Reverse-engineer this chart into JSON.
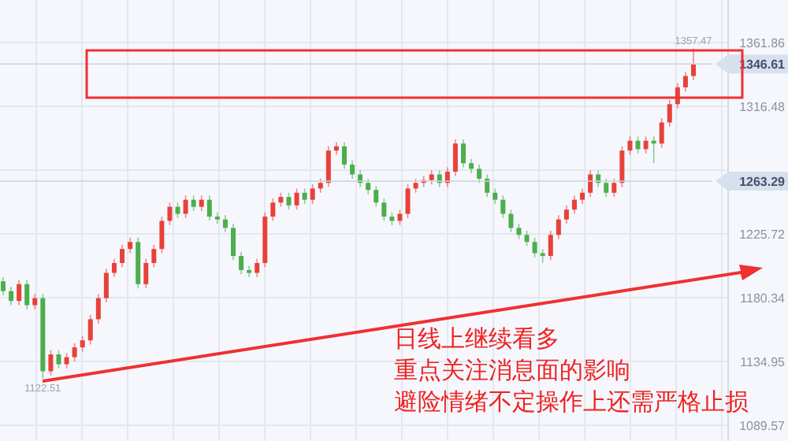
{
  "chart_data": {
    "type": "candlestick",
    "categories": [
      null,
      null,
      null,
      null,
      null,
      null,
      null,
      null,
      null,
      null,
      null,
      null,
      null,
      null,
      null,
      null,
      null,
      null,
      null,
      null,
      null,
      null,
      null,
      null,
      null,
      null,
      null,
      null,
      null,
      null,
      null,
      null,
      null,
      null,
      null,
      null,
      null,
      null,
      null,
      null,
      null,
      null,
      null,
      null,
      null,
      null,
      null,
      null,
      null,
      null,
      null,
      null,
      null,
      null,
      null,
      null,
      null,
      null,
      null,
      null,
      null,
      null,
      null,
      null,
      null,
      null,
      null,
      null,
      null,
      null,
      null,
      null,
      null,
      null,
      null,
      null,
      null,
      null,
      null,
      null,
      null,
      null,
      null,
      null,
      null,
      null,
      null,
      null
    ],
    "ohlc": [
      [
        1192,
        1195,
        1182,
        1185
      ],
      [
        1185,
        1188,
        1175,
        1178
      ],
      [
        1178,
        1193,
        1175,
        1190
      ],
      [
        1190,
        1193,
        1172,
        1175
      ],
      [
        1175,
        1183,
        1172,
        1180
      ],
      [
        1180,
        1183,
        1122.51,
        1128
      ],
      [
        1128,
        1143,
        1125,
        1140
      ],
      [
        1140,
        1143,
        1130,
        1133
      ],
      [
        1133,
        1141,
        1130,
        1138
      ],
      [
        1138,
        1148,
        1135,
        1145
      ],
      [
        1145,
        1153,
        1142,
        1150
      ],
      [
        1150,
        1168,
        1147,
        1165
      ],
      [
        1165,
        1183,
        1162,
        1180
      ],
      [
        1180,
        1201,
        1177,
        1198
      ],
      [
        1198,
        1208,
        1195,
        1205
      ],
      [
        1205,
        1218,
        1202,
        1215
      ],
      [
        1215,
        1223,
        1212,
        1220
      ],
      [
        1220,
        1223,
        1187,
        1190
      ],
      [
        1190,
        1208,
        1187,
        1205
      ],
      [
        1205,
        1218,
        1202,
        1215
      ],
      [
        1215,
        1238,
        1212,
        1235
      ],
      [
        1235,
        1248,
        1232,
        1245
      ],
      [
        1245,
        1248,
        1237,
        1240
      ],
      [
        1240,
        1253,
        1237,
        1250
      ],
      [
        1250,
        1253,
        1242,
        1245
      ],
      [
        1245,
        1253,
        1242,
        1250
      ],
      [
        1250,
        1253,
        1235,
        1238
      ],
      [
        1238,
        1241,
        1233,
        1236
      ],
      [
        1236,
        1239,
        1227,
        1230
      ],
      [
        1230,
        1233,
        1207,
        1210
      ],
      [
        1210,
        1213,
        1197,
        1200
      ],
      [
        1200,
        1203,
        1195,
        1198
      ],
      [
        1198,
        1208,
        1195,
        1205
      ],
      [
        1205,
        1241,
        1202,
        1238
      ],
      [
        1238,
        1251,
        1235,
        1248
      ],
      [
        1248,
        1255,
        1245,
        1252
      ],
      [
        1252,
        1255,
        1243,
        1246
      ],
      [
        1246,
        1258,
        1243,
        1255
      ],
      [
        1255,
        1258,
        1247,
        1250
      ],
      [
        1250,
        1261,
        1247,
        1258
      ],
      [
        1258,
        1265,
        1255,
        1262
      ],
      [
        1262,
        1288,
        1259,
        1285
      ],
      [
        1285,
        1291,
        1282,
        1288
      ],
      [
        1288,
        1291,
        1272,
        1275
      ],
      [
        1275,
        1278,
        1265,
        1268
      ],
      [
        1268,
        1271,
        1259,
        1262
      ],
      [
        1262,
        1265,
        1254,
        1257
      ],
      [
        1257,
        1260,
        1245,
        1248
      ],
      [
        1248,
        1251,
        1235,
        1238
      ],
      [
        1238,
        1241,
        1232,
        1235
      ],
      [
        1235,
        1243,
        1232,
        1240
      ],
      [
        1240,
        1261,
        1237,
        1258
      ],
      [
        1258,
        1265,
        1255,
        1262
      ],
      [
        1262,
        1267,
        1259,
        1264
      ],
      [
        1264,
        1271,
        1261,
        1268
      ],
      [
        1268,
        1271,
        1259,
        1262
      ],
      [
        1262,
        1273,
        1259,
        1270
      ],
      [
        1270,
        1293,
        1267,
        1290
      ],
      [
        1290,
        1293,
        1273,
        1276
      ],
      [
        1276,
        1279,
        1269,
        1272
      ],
      [
        1272,
        1275,
        1262,
        1265
      ],
      [
        1265,
        1268,
        1252,
        1255
      ],
      [
        1255,
        1258,
        1247,
        1250
      ],
      [
        1250,
        1253,
        1237,
        1240
      ],
      [
        1240,
        1243,
        1227,
        1230
      ],
      [
        1230,
        1233,
        1222,
        1225
      ],
      [
        1225,
        1228,
        1217,
        1220
      ],
      [
        1220,
        1223,
        1209,
        1212
      ],
      [
        1212,
        1215,
        1205,
        1210
      ],
      [
        1210,
        1228,
        1207,
        1225
      ],
      [
        1225,
        1239,
        1222,
        1236
      ],
      [
        1236,
        1246,
        1233,
        1243
      ],
      [
        1243,
        1253,
        1240,
        1250
      ],
      [
        1250,
        1258,
        1247,
        1255
      ],
      [
        1255,
        1271,
        1252,
        1268
      ],
      [
        1268,
        1271,
        1259,
        1262
      ],
      [
        1262,
        1265,
        1252,
        1255
      ],
      [
        1255,
        1265,
        1252,
        1262
      ],
      [
        1262,
        1288,
        1259,
        1285
      ],
      [
        1285,
        1295,
        1282,
        1292
      ],
      [
        1292,
        1295,
        1283,
        1286
      ],
      [
        1286,
        1295,
        1283,
        1292
      ],
      [
        1292,
        1295,
        1276,
        1290
      ],
      [
        1290,
        1308,
        1287,
        1305
      ],
      [
        1305,
        1321,
        1302,
        1318
      ],
      [
        1318,
        1333,
        1315,
        1330
      ],
      [
        1330,
        1341,
        1327,
        1338
      ],
      [
        1338,
        1357.47,
        1335,
        1346.61
      ]
    ],
    "ylim": [
      1078.4,
      1392.1
    ],
    "yticks": [
      1361.86,
      1316.48,
      {
        "value": 1271.1,
        "label": null
      },
      1225.72,
      1180.34,
      1134.95,
      1089.57
    ],
    "grid": true,
    "ref_lines": [
      {
        "axis": "y",
        "value": 1346.61,
        "label": "1346.61"
      },
      {
        "axis": "y",
        "value": 1263.29,
        "label": "1263.29"
      }
    ],
    "annotations": [
      {
        "text": "1357.47",
        "y": 1357.47
      },
      {
        "text": "1122.51",
        "y": 1122.51
      },
      "日线上继续看多",
      "重点关注消息面的影响",
      "避险情绪不定操作上还需严格止损"
    ]
  }
}
